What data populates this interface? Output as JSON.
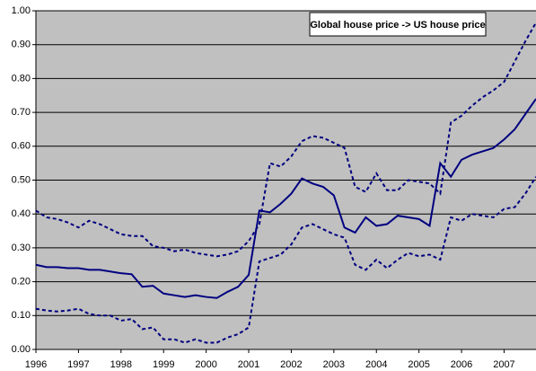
{
  "chart_data": {
    "type": "line",
    "title": "Global house price -> US house price",
    "x": [
      1996,
      1996.25,
      1996.5,
      1996.75,
      1997,
      1997.25,
      1997.5,
      1997.75,
      1998,
      1998.25,
      1998.5,
      1998.75,
      1999,
      1999.25,
      1999.5,
      1999.75,
      2000,
      2000.25,
      2000.5,
      2000.75,
      2001,
      2001.25,
      2001.5,
      2001.75,
      2002,
      2002.25,
      2002.5,
      2002.75,
      2003,
      2003.25,
      2003.5,
      2003.75,
      2004,
      2004.25,
      2004.5,
      2004.75,
      2005,
      2005.25,
      2005.5,
      2005.75,
      2006,
      2006.25,
      2006.5,
      2006.75,
      2007,
      2007.25,
      2007.5,
      2007.75
    ],
    "series": [
      {
        "color": "#000080",
        "dash": false,
        "values": [
          0.25,
          0.243,
          0.243,
          0.24,
          0.24,
          0.235,
          0.235,
          0.23,
          0.225,
          0.222,
          0.185,
          0.188,
          0.165,
          0.16,
          0.155,
          0.16,
          0.155,
          0.152,
          0.17,
          0.185,
          0.22,
          0.41,
          0.405,
          0.43,
          0.46,
          0.505,
          0.49,
          0.48,
          0.455,
          0.36,
          0.345,
          0.39,
          0.365,
          0.37,
          0.395,
          0.39,
          0.385,
          0.365,
          0.55,
          0.51,
          0.56,
          0.575,
          0.585,
          0.595,
          0.62,
          0.65,
          0.695,
          0.74
        ]
      },
      {
        "color": "#000080",
        "dash": true,
        "values": [
          0.41,
          0.39,
          0.385,
          0.375,
          0.36,
          0.38,
          0.37,
          0.355,
          0.34,
          0.335,
          0.335,
          0.305,
          0.3,
          0.29,
          0.295,
          0.285,
          0.28,
          0.275,
          0.28,
          0.29,
          0.32,
          0.37,
          0.55,
          0.54,
          0.57,
          0.615,
          0.63,
          0.625,
          0.61,
          0.595,
          0.48,
          0.465,
          0.52,
          0.47,
          0.47,
          0.5,
          0.495,
          0.49,
          0.46,
          0.67,
          0.69,
          0.72,
          0.745,
          0.765,
          0.79,
          0.85,
          0.91,
          0.965
        ]
      },
      {
        "color": "#000080",
        "dash": true,
        "values": [
          0.12,
          0.115,
          0.112,
          0.115,
          0.12,
          0.105,
          0.1,
          0.1,
          0.085,
          0.09,
          0.06,
          0.065,
          0.03,
          0.03,
          0.02,
          0.03,
          0.02,
          0.02,
          0.035,
          0.045,
          0.065,
          0.26,
          0.27,
          0.28,
          0.31,
          0.36,
          0.37,
          0.355,
          0.34,
          0.33,
          0.25,
          0.235,
          0.265,
          0.24,
          0.265,
          0.285,
          0.275,
          0.28,
          0.265,
          0.39,
          0.38,
          0.4,
          0.395,
          0.39,
          0.415,
          0.42,
          0.46,
          0.51
        ]
      }
    ],
    "xlim": [
      1996,
      2007.75
    ],
    "xticks": [
      1996,
      1997,
      1998,
      1999,
      2000,
      2001,
      2002,
      2003,
      2004,
      2005,
      2006,
      2007
    ],
    "ylim": [
      0,
      1
    ],
    "yticks": [
      {
        "value": 0,
        "label": "0.00"
      },
      {
        "value": 0.1,
        "label": "0.10"
      },
      {
        "value": 0.2,
        "label": "0.20"
      },
      {
        "value": 0.3,
        "label": "0.30"
      },
      {
        "value": 0.4,
        "label": "0.40"
      },
      {
        "value": 0.5,
        "label": "0.50"
      },
      {
        "value": 0.6,
        "label": "0.60"
      },
      {
        "value": 0.7,
        "label": "0.70"
      },
      {
        "value": 0.8,
        "label": "0.80"
      },
      {
        "value": 0.9,
        "label": "0.90"
      },
      {
        "value": 1,
        "label": "1.00"
      }
    ],
    "grid": true,
    "background": "#c0c0c0"
  }
}
